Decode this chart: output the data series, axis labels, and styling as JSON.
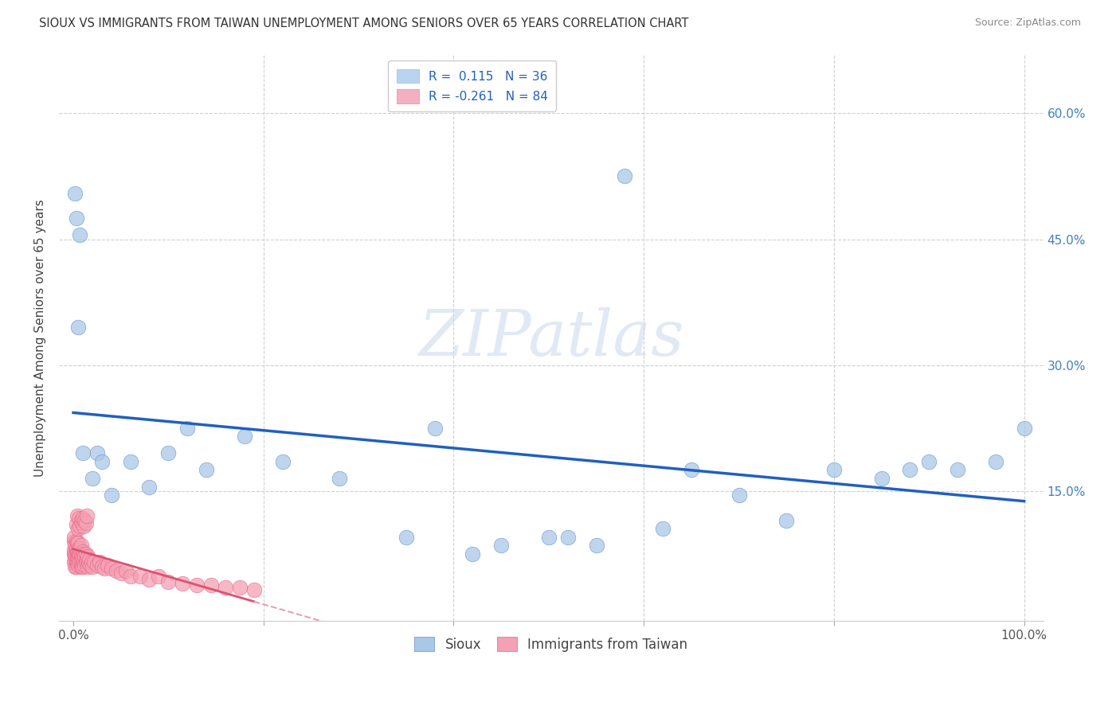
{
  "title": "SIOUX VS IMMIGRANTS FROM TAIWAN UNEMPLOYMENT AMONG SENIORS OVER 65 YEARS CORRELATION CHART",
  "source": "Source: ZipAtlas.com",
  "ylabel": "Unemployment Among Seniors over 65 years",
  "watermark": "ZIPatlas",
  "xlim": [
    -0.015,
    1.02
  ],
  "ylim": [
    -0.005,
    0.67
  ],
  "xticks": [
    0.0,
    0.2,
    0.4,
    0.6,
    0.8,
    1.0
  ],
  "xtick_labels": [
    "0.0%",
    "",
    "",
    "",
    "",
    "100.0%"
  ],
  "ytick_positions": [
    0.15,
    0.3,
    0.45,
    0.6
  ],
  "ytick_labels": [
    "15.0%",
    "30.0%",
    "45.0%",
    "60.0%"
  ],
  "sioux_color": "#a8c8e8",
  "taiwan_color": "#f4a0b5",
  "taiwan_scatter_color": "#e8607a",
  "line_sioux_color": "#2060c0",
  "line_taiwan_color": "#e05070",
  "line_taiwan_dash_color": "#e8a0b0",
  "background_color": "#ffffff",
  "grid_color": "#d0d0d0",
  "sioux_x": [
    0.002,
    0.003,
    0.005,
    0.007,
    0.01,
    0.02,
    0.025,
    0.03,
    0.04,
    0.06,
    0.08,
    0.1,
    0.12,
    0.14,
    0.18,
    0.22,
    0.28,
    0.35,
    0.38,
    0.42,
    0.45,
    0.5,
    0.52,
    0.55,
    0.58,
    0.62,
    0.65,
    0.7,
    0.75,
    0.8,
    0.85,
    0.88,
    0.9,
    0.93,
    0.97,
    1.0
  ],
  "sioux_y": [
    0.505,
    0.475,
    0.345,
    0.455,
    0.195,
    0.165,
    0.195,
    0.185,
    0.145,
    0.185,
    0.155,
    0.195,
    0.225,
    0.175,
    0.215,
    0.185,
    0.165,
    0.095,
    0.225,
    0.075,
    0.085,
    0.095,
    0.095,
    0.085,
    0.525,
    0.105,
    0.175,
    0.145,
    0.115,
    0.175,
    0.165,
    0.175,
    0.185,
    0.175,
    0.185,
    0.225
  ],
  "taiwan_x": [
    0.001,
    0.001,
    0.001,
    0.001,
    0.001,
    0.002,
    0.002,
    0.002,
    0.002,
    0.003,
    0.003,
    0.003,
    0.003,
    0.003,
    0.004,
    0.004,
    0.004,
    0.004,
    0.005,
    0.005,
    0.005,
    0.005,
    0.006,
    0.006,
    0.006,
    0.007,
    0.007,
    0.007,
    0.008,
    0.008,
    0.008,
    0.008,
    0.009,
    0.009,
    0.01,
    0.01,
    0.01,
    0.011,
    0.011,
    0.012,
    0.012,
    0.013,
    0.013,
    0.014,
    0.015,
    0.015,
    0.016,
    0.017,
    0.018,
    0.019,
    0.02,
    0.022,
    0.025,
    0.028,
    0.03,
    0.033,
    0.036,
    0.04,
    0.045,
    0.05,
    0.055,
    0.06,
    0.07,
    0.08,
    0.09,
    0.1,
    0.115,
    0.13,
    0.145,
    0.16,
    0.175,
    0.19,
    0.003,
    0.004,
    0.005,
    0.006,
    0.007,
    0.008,
    0.009,
    0.01,
    0.011,
    0.012,
    0.013,
    0.014
  ],
  "taiwan_y": [
    0.065,
    0.075,
    0.08,
    0.09,
    0.095,
    0.06,
    0.07,
    0.075,
    0.085,
    0.06,
    0.065,
    0.075,
    0.082,
    0.09,
    0.065,
    0.072,
    0.078,
    0.088,
    0.062,
    0.07,
    0.078,
    0.088,
    0.065,
    0.074,
    0.082,
    0.068,
    0.075,
    0.082,
    0.06,
    0.068,
    0.075,
    0.085,
    0.062,
    0.072,
    0.06,
    0.068,
    0.078,
    0.065,
    0.075,
    0.062,
    0.072,
    0.065,
    0.075,
    0.068,
    0.06,
    0.072,
    0.065,
    0.068,
    0.062,
    0.065,
    0.06,
    0.065,
    0.062,
    0.065,
    0.06,
    0.058,
    0.062,
    0.058,
    0.055,
    0.052,
    0.055,
    0.048,
    0.048,
    0.045,
    0.048,
    0.042,
    0.04,
    0.038,
    0.038,
    0.035,
    0.035,
    0.032,
    0.11,
    0.12,
    0.105,
    0.118,
    0.108,
    0.115,
    0.112,
    0.118,
    0.108,
    0.115,
    0.112,
    0.12
  ]
}
